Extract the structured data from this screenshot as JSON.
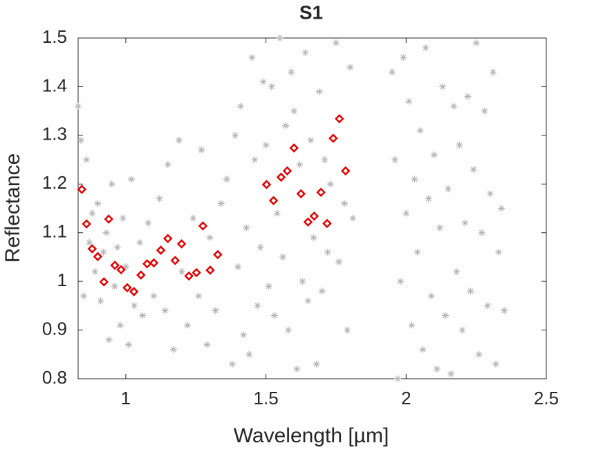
{
  "chart_data": {
    "type": "scatter",
    "title": "S1",
    "xlabel": "Wavelength [µm]",
    "ylabel": "Reflectance",
    "xlim": [
      0.83,
      2.5
    ],
    "ylim": [
      0.8,
      1.5
    ],
    "xticks": [
      1,
      1.5,
      2,
      2.5
    ],
    "yticks": [
      0.8,
      0.9,
      1,
      1.1,
      1.2,
      1.3,
      1.4,
      1.5
    ],
    "grid": false,
    "series": [
      {
        "color": "#b4b4b4",
        "marker": "asterisk",
        "x": [
          0.83,
          0.84,
          0.85,
          0.86,
          0.87,
          0.88,
          0.89,
          0.9,
          0.91,
          0.92,
          0.93,
          0.94,
          0.95,
          0.96,
          0.97,
          0.98,
          0.99,
          1.0,
          1.01,
          1.02,
          1.03,
          1.05,
          1.06,
          1.08,
          1.1,
          1.12,
          1.14,
          1.15,
          1.17,
          1.19,
          1.2,
          1.22,
          1.24,
          1.26,
          1.27,
          1.29,
          1.3,
          1.32,
          1.34,
          1.36,
          1.38,
          1.39,
          1.4,
          1.41,
          1.42,
          1.43,
          1.44,
          1.45,
          1.46,
          1.47,
          1.48,
          1.49,
          1.5,
          1.51,
          1.52,
          1.53,
          1.54,
          1.55,
          1.56,
          1.57,
          1.58,
          1.59,
          1.6,
          1.61,
          1.62,
          1.63,
          1.64,
          1.65,
          1.66,
          1.67,
          1.68,
          1.69,
          1.7,
          1.71,
          1.72,
          1.73,
          1.75,
          1.76,
          1.78,
          1.79,
          1.8,
          1.81,
          1.95,
          1.96,
          1.97,
          1.98,
          1.99,
          2.0,
          2.01,
          2.02,
          2.03,
          2.04,
          2.05,
          2.06,
          2.07,
          2.08,
          2.09,
          2.1,
          2.11,
          2.12,
          2.13,
          2.14,
          2.15,
          2.16,
          2.17,
          2.18,
          2.19,
          2.2,
          2.21,
          2.22,
          2.23,
          2.24,
          2.25,
          2.26,
          2.27,
          2.28,
          2.29,
          2.3,
          2.31,
          2.32,
          2.33,
          2.34,
          2.35
        ],
        "values": [
          1.36,
          1.29,
          0.97,
          1.25,
          1.08,
          1.14,
          1.02,
          1.16,
          0.96,
          1.06,
          1.1,
          0.88,
          1.2,
          0.99,
          1.07,
          0.91,
          1.13,
          1.03,
          0.87,
          1.21,
          0.95,
          1.08,
          0.93,
          1.12,
          0.97,
          1.17,
          0.94,
          1.24,
          0.86,
          1.29,
          1.02,
          0.91,
          1.13,
          0.97,
          1.27,
          0.87,
          1.09,
          0.94,
          1.16,
          1.21,
          0.83,
          1.3,
          1.03,
          1.36,
          0.89,
          1.11,
          0.85,
          1.46,
          1.25,
          0.95,
          1.07,
          1.41,
          1.28,
          0.99,
          1.4,
          0.93,
          1.14,
          1.5,
          1.05,
          1.32,
          0.9,
          1.43,
          1.35,
          0.82,
          1.24,
          1.0,
          1.47,
          0.96,
          1.29,
          1.09,
          0.83,
          1.39,
          0.98,
          1.25,
          1.06,
          1.2,
          1.49,
          1.04,
          1.16,
          0.9,
          1.44,
          1.13,
          1.43,
          1.25,
          0.8,
          1.0,
          1.46,
          1.14,
          1.37,
          0.91,
          1.21,
          1.06,
          1.31,
          0.86,
          1.48,
          1.17,
          0.97,
          1.26,
          0.82,
          1.11,
          1.4,
          0.93,
          1.19,
          0.81,
          1.36,
          1.02,
          1.28,
          0.9,
          1.12,
          1.38,
          0.98,
          1.23,
          1.49,
          0.85,
          1.1,
          1.35,
          0.95,
          1.18,
          1.43,
          0.83,
          1.06,
          1.15,
          0.94
        ]
      },
      {
        "color": "#e60000",
        "marker": "diamond",
        "x": [
          0.843,
          0.86,
          0.88,
          0.9,
          0.922,
          0.939,
          0.961,
          0.983,
          1.005,
          1.029,
          1.054,
          1.076,
          1.1,
          1.125,
          1.15,
          1.176,
          1.199,
          1.225,
          1.252,
          1.275,
          1.301,
          1.328,
          1.502,
          1.527,
          1.554,
          1.576,
          1.6,
          1.625,
          1.65,
          1.672,
          1.696,
          1.718,
          1.74,
          1.762,
          1.784
        ],
        "values": [
          1.189,
          1.118,
          1.067,
          1.051,
          0.999,
          1.128,
          1.033,
          1.024,
          0.987,
          0.979,
          1.013,
          1.036,
          1.038,
          1.064,
          1.088,
          1.043,
          1.077,
          1.011,
          1.018,
          1.114,
          1.023,
          1.055,
          1.199,
          1.166,
          1.214,
          1.227,
          1.274,
          1.18,
          1.122,
          1.134,
          1.183,
          1.119,
          1.294,
          1.334,
          1.227
        ]
      }
    ]
  }
}
